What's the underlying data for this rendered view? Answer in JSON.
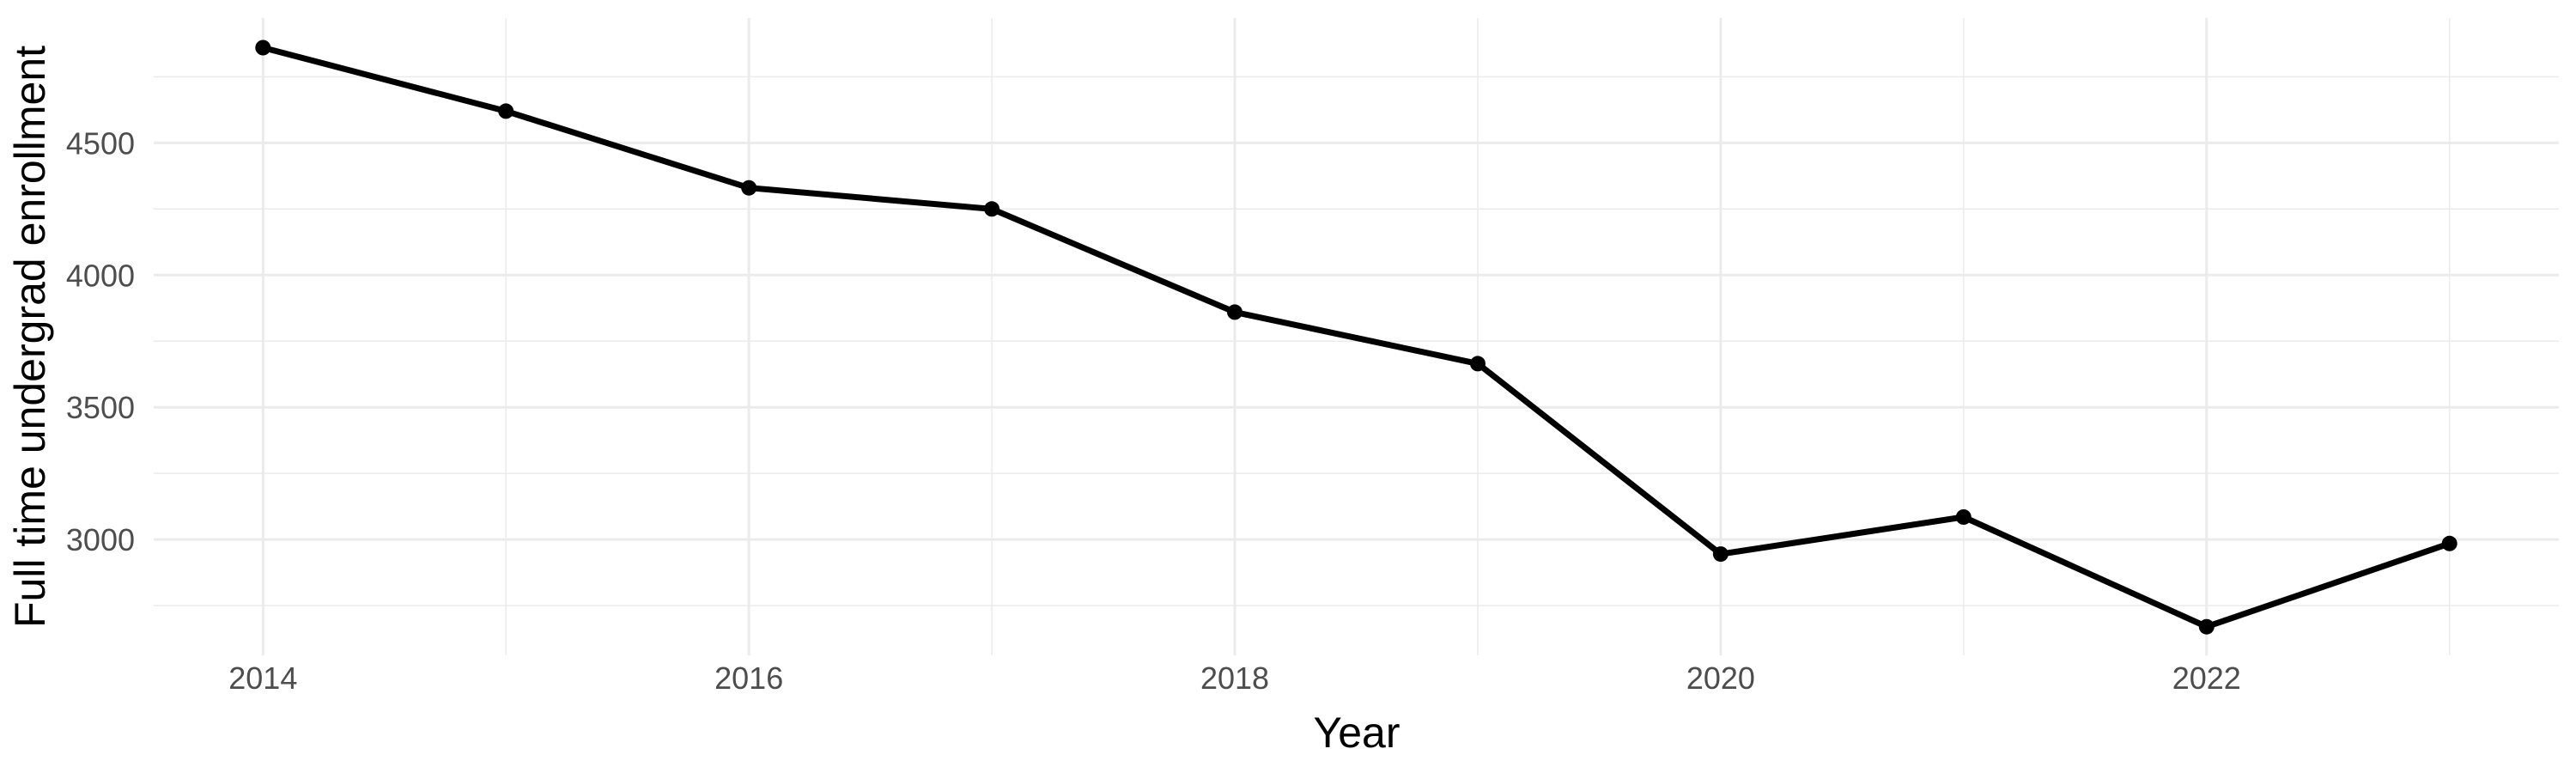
{
  "chart_data": {
    "type": "line",
    "title": "",
    "xlabel": "Year",
    "ylabel": "Full time undergrad enrollment",
    "x": [
      2014,
      2015,
      2016,
      2017,
      2018,
      2019,
      2020,
      2021,
      2022,
      2023
    ],
    "series": [
      {
        "name": "Full time undergrad enrollment",
        "values": [
          4860,
          4620,
          4330,
          4250,
          3860,
          3665,
          2945,
          3085,
          2670,
          2985
        ]
      }
    ],
    "x_major_ticks": [
      2014,
      2016,
      2018,
      2020,
      2022
    ],
    "x_minor_gridlines": [
      2015,
      2017,
      2019,
      2021,
      2023
    ],
    "y_major_ticks": [
      4500,
      4000,
      3500,
      3000
    ],
    "y_minor_gridlines": [
      4750,
      4250,
      3750,
      3250,
      2750
    ],
    "xlim": [
      2013.55,
      2023.45
    ],
    "ylim": [
      2562,
      4972
    ],
    "grid": true,
    "legend": false,
    "marker": "point",
    "colors": {
      "line": "#000000",
      "point": "#000000",
      "grid_major": "#EBEBEB",
      "grid_minor": "#EBEBEB",
      "tick_label": "#4D4D4D",
      "axis_title": "#000000",
      "background": "#FFFFFF"
    }
  }
}
